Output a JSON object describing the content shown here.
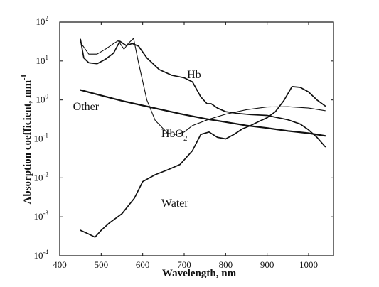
{
  "chart_data": {
    "type": "line",
    "title": "",
    "xlabel": "Wavelength, nm",
    "ylabel": "Absorption coefficient, mm",
    "ylabel_superscript": "-1",
    "xlim": [
      400,
      1060
    ],
    "ylim": [
      0.0001,
      100
    ],
    "yscale": "log",
    "grid": false,
    "x_ticks": [
      400,
      500,
      600,
      700,
      800,
      900,
      1000
    ],
    "y_tick_exponents": [
      -4,
      -3,
      -2,
      -1,
      0,
      1,
      2
    ],
    "y_tick_base": "10",
    "series": [
      {
        "name": "Hb",
        "stroke_width": 1.7,
        "points": [
          [
            450,
            36
          ],
          [
            458,
            12
          ],
          [
            470,
            9
          ],
          [
            490,
            8.5
          ],
          [
            510,
            11
          ],
          [
            530,
            16
          ],
          [
            545,
            32
          ],
          [
            560,
            25
          ],
          [
            575,
            28
          ],
          [
            590,
            24
          ],
          [
            610,
            12
          ],
          [
            640,
            6
          ],
          [
            670,
            4.3
          ],
          [
            700,
            3.7
          ],
          [
            720,
            2.9
          ],
          [
            740,
            1.2
          ],
          [
            755,
            0.8
          ],
          [
            765,
            0.8
          ],
          [
            780,
            0.62
          ],
          [
            800,
            0.5
          ],
          [
            830,
            0.45
          ],
          [
            860,
            0.42
          ],
          [
            900,
            0.4
          ],
          [
            950,
            0.31
          ],
          [
            980,
            0.24
          ],
          [
            1000,
            0.17
          ],
          [
            1020,
            0.11
          ],
          [
            1040,
            0.063
          ]
        ]
      },
      {
        "name": "HbO2",
        "stroke_width": 1.1,
        "points": [
          [
            450,
            30
          ],
          [
            470,
            15
          ],
          [
            490,
            15
          ],
          [
            510,
            20
          ],
          [
            530,
            28
          ],
          [
            541,
            33
          ],
          [
            555,
            20
          ],
          [
            565,
            28
          ],
          [
            578,
            38
          ],
          [
            590,
            9
          ],
          [
            610,
            1.0
          ],
          [
            630,
            0.3
          ],
          [
            660,
            0.14
          ],
          [
            680,
            0.13
          ],
          [
            700,
            0.15
          ],
          [
            720,
            0.22
          ],
          [
            760,
            0.32
          ],
          [
            800,
            0.43
          ],
          [
            850,
            0.56
          ],
          [
            900,
            0.66
          ],
          [
            950,
            0.67
          ],
          [
            1000,
            0.62
          ],
          [
            1040,
            0.53
          ]
        ]
      },
      {
        "name": "Water",
        "stroke_width": 1.7,
        "points": [
          [
            450,
            0.00045
          ],
          [
            470,
            0.00036
          ],
          [
            485,
            0.0003
          ],
          [
            500,
            0.00045
          ],
          [
            520,
            0.0007
          ],
          [
            550,
            0.0012
          ],
          [
            580,
            0.003
          ],
          [
            600,
            0.008
          ],
          [
            630,
            0.012
          ],
          [
            660,
            0.016
          ],
          [
            690,
            0.022
          ],
          [
            720,
            0.05
          ],
          [
            740,
            0.13
          ],
          [
            760,
            0.15
          ],
          [
            780,
            0.11
          ],
          [
            800,
            0.1
          ],
          [
            820,
            0.13
          ],
          [
            840,
            0.18
          ],
          [
            860,
            0.22
          ],
          [
            880,
            0.28
          ],
          [
            900,
            0.35
          ],
          [
            920,
            0.5
          ],
          [
            940,
            0.95
          ],
          [
            960,
            2.2
          ],
          [
            980,
            2.1
          ],
          [
            1000,
            1.6
          ],
          [
            1020,
            1.0
          ],
          [
            1040,
            0.7
          ]
        ]
      },
      {
        "name": "Other",
        "stroke_width": 2.2,
        "points": [
          [
            450,
            1.8
          ],
          [
            500,
            1.3
          ],
          [
            550,
            0.95
          ],
          [
            600,
            0.72
          ],
          [
            650,
            0.55
          ],
          [
            700,
            0.42
          ],
          [
            750,
            0.33
          ],
          [
            800,
            0.27
          ],
          [
            850,
            0.22
          ],
          [
            900,
            0.19
          ],
          [
            950,
            0.16
          ],
          [
            1000,
            0.14
          ],
          [
            1040,
            0.12
          ]
        ]
      }
    ],
    "annotations": {
      "hb": {
        "text": "Hb",
        "x": 707,
        "y": 3.6
      },
      "hbo2": {
        "main": "HbO",
        "sub": "2",
        "x": 645,
        "y": 0.11
      },
      "water": {
        "text": "Water",
        "x": 645,
        "y": 0.0018
      },
      "other": {
        "text": "Other",
        "x": 432,
        "y": 0.55
      }
    }
  }
}
